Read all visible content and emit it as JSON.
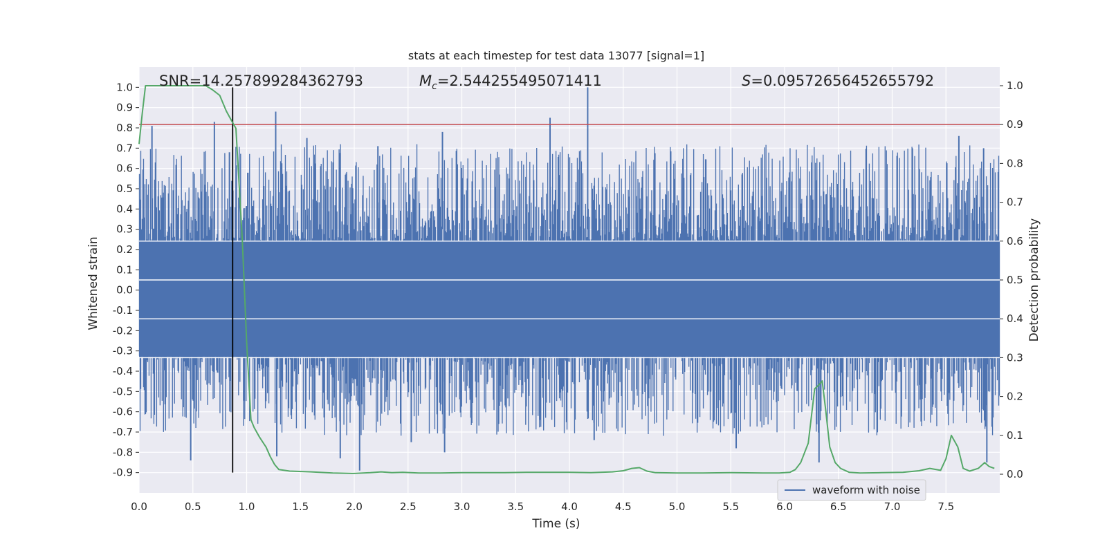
{
  "chart_data": {
    "type": "line",
    "title": "stats at each timestep for test data 13077 [signal=1]",
    "xlabel": "Time (s)",
    "ylabel": "Whitened strain",
    "y2label": "Detection probability",
    "xlim": [
      0.0,
      8.0
    ],
    "ylim": [
      -1.0,
      1.1
    ],
    "y2lim": [
      -0.048,
      1.048
    ],
    "xticks": [
      "0.0",
      "0.5",
      "1.0",
      "1.5",
      "2.0",
      "2.5",
      "3.0",
      "3.5",
      "4.0",
      "4.5",
      "5.0",
      "5.5",
      "6.0",
      "6.5",
      "7.0",
      "7.5"
    ],
    "yticks": [
      "1.0",
      "0.9",
      "0.8",
      "0.7",
      "0.6",
      "0.5",
      "0.4",
      "0.3",
      "0.2",
      "0.1",
      "0.0",
      "-0.1",
      "-0.2",
      "-0.3",
      "-0.4",
      "-0.5",
      "-0.6",
      "-0.7",
      "-0.8",
      "-0.9"
    ],
    "y2ticks": [
      "1.0",
      "0.9",
      "0.8",
      "0.7",
      "0.6",
      "0.5",
      "0.4",
      "0.3",
      "0.2",
      "0.1",
      "0.0"
    ],
    "grid": true,
    "legend_position": "lower-right",
    "annotations": {
      "snr": "SNR=14.257899284362793",
      "mc_symbol": "M",
      "mc_sub": "c",
      "mc_value": "=2.544255495071411",
      "s_symbol": "S",
      "s_value": "=0.09572656452655792"
    },
    "series": [
      {
        "name": "waveform with noise",
        "axis": "left",
        "color": "#4c72b0",
        "kind": "dense-noise",
        "typical_envelope": [
          -0.45,
          0.45
        ],
        "peaks": [
          {
            "x": 0.12,
            "y": 0.81
          },
          {
            "x": 0.7,
            "y": 0.83
          },
          {
            "x": 0.84,
            "y": 0.68
          },
          {
            "x": 1.27,
            "y": 0.88
          },
          {
            "x": 1.56,
            "y": 0.75
          },
          {
            "x": 2.22,
            "y": 0.71
          },
          {
            "x": 2.82,
            "y": 0.78
          },
          {
            "x": 3.82,
            "y": 0.85
          },
          {
            "x": 4.17,
            "y": 1.0
          },
          {
            "x": 7.62,
            "y": 0.76
          },
          {
            "x": 7.85,
            "y": 0.7
          },
          {
            "x": 0.48,
            "y": -0.84
          },
          {
            "x": 1.28,
            "y": -0.82
          },
          {
            "x": 1.87,
            "y": -0.83
          },
          {
            "x": 2.05,
            "y": -0.89
          },
          {
            "x": 2.53,
            "y": -0.75
          },
          {
            "x": 2.84,
            "y": -0.8
          },
          {
            "x": 4.23,
            "y": -0.74
          },
          {
            "x": 5.55,
            "y": -0.78
          },
          {
            "x": 6.32,
            "y": -0.85
          },
          {
            "x": 7.88,
            "y": -0.85
          }
        ]
      },
      {
        "name": "",
        "axis": "right",
        "color": "#55a868",
        "x": [
          0.0,
          0.03,
          0.06,
          0.12,
          0.3,
          0.5,
          0.62,
          0.68,
          0.75,
          0.81,
          0.86,
          0.9,
          0.96,
          1.0,
          1.04,
          1.07,
          1.12,
          1.18,
          1.22,
          1.26,
          1.3,
          1.4,
          1.6,
          1.8,
          2.0,
          2.15,
          2.25,
          2.35,
          2.45,
          2.6,
          2.8,
          3.0,
          3.2,
          3.4,
          3.6,
          3.8,
          4.0,
          4.2,
          4.4,
          4.5,
          4.58,
          4.65,
          4.72,
          4.8,
          5.0,
          5.2,
          5.5,
          5.8,
          5.95,
          6.05,
          6.1,
          6.15,
          6.22,
          6.28,
          6.32,
          6.35,
          6.38,
          6.42,
          6.47,
          6.52,
          6.6,
          6.7,
          6.9,
          7.1,
          7.25,
          7.35,
          7.45,
          7.5,
          7.55,
          7.61,
          7.66,
          7.72,
          7.8,
          7.86,
          7.9,
          7.95
        ],
        "y": [
          0.85,
          0.93,
          1.0,
          1.0,
          1.0,
          1.0,
          1.0,
          0.99,
          0.975,
          0.935,
          0.91,
          0.89,
          0.6,
          0.34,
          0.14,
          0.12,
          0.095,
          0.07,
          0.045,
          0.025,
          0.012,
          0.008,
          0.006,
          0.003,
          0.002,
          0.004,
          0.006,
          0.004,
          0.005,
          0.003,
          0.003,
          0.004,
          0.004,
          0.004,
          0.005,
          0.005,
          0.005,
          0.004,
          0.006,
          0.009,
          0.015,
          0.017,
          0.008,
          0.004,
          0.003,
          0.003,
          0.004,
          0.003,
          0.003,
          0.005,
          0.012,
          0.03,
          0.08,
          0.22,
          0.23,
          0.24,
          0.17,
          0.07,
          0.03,
          0.015,
          0.005,
          0.003,
          0.004,
          0.005,
          0.009,
          0.015,
          0.01,
          0.04,
          0.1,
          0.07,
          0.015,
          0.008,
          0.015,
          0.03,
          0.02,
          0.015
        ]
      }
    ],
    "threshold": {
      "axis": "right",
      "y": 0.9,
      "color": "#c44e52"
    },
    "marker_line": {
      "x": 0.87,
      "y_from": -0.9,
      "y_to": 1.0,
      "color": "#000000"
    }
  }
}
